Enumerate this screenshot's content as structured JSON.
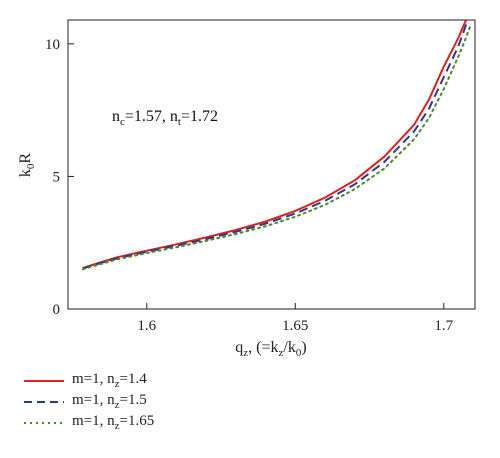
{
  "chart_data": {
    "type": "line",
    "xlabel": {
      "main": "q",
      "sub": "z",
      "rest": ", (=k",
      "sub2": "z",
      "rest2": "/k",
      "sub3": "0",
      "close": ")"
    },
    "ylabel": {
      "main": "k",
      "sub": "0",
      "rest": "R"
    },
    "xlim": [
      1.5735,
      1.7105
    ],
    "ylim": [
      0,
      10.9
    ],
    "xticks": [
      1.6,
      1.65,
      1.7
    ],
    "xtick_labels": [
      "1.6",
      "1.65",
      "1.7"
    ],
    "yticks": [
      0,
      5,
      10
    ],
    "ytick_labels": [
      "0",
      "5",
      "10"
    ],
    "annotation": {
      "a": "n",
      "a_sub": "c",
      "b": "=1.57, n",
      "b_sub": "t",
      "c": "=1.72"
    },
    "legend_position": "bottom-left-outside",
    "series": [
      {
        "name": "m=1, n_z=1.4",
        "label_pre": "m=1, n",
        "label_sub": "z",
        "label_post": "=1.4",
        "color": "#e0201c",
        "dash": "solid",
        "x": [
          1.5785,
          1.585,
          1.59,
          1.6,
          1.61,
          1.62,
          1.63,
          1.64,
          1.65,
          1.66,
          1.67,
          1.68,
          1.69,
          1.695,
          1.7,
          1.703,
          1.705,
          1.7065,
          1.7075
        ],
        "y": [
          1.55,
          1.78,
          1.95,
          2.2,
          2.44,
          2.7,
          2.98,
          3.3,
          3.7,
          4.2,
          4.85,
          5.75,
          6.95,
          7.9,
          9.15,
          9.8,
          10.25,
          10.65,
          10.9
        ]
      },
      {
        "name": "m=1, n_z=1.5",
        "label_pre": "m=1, n",
        "label_sub": "z",
        "label_post": "=1.5",
        "color": "#2b3a8f",
        "dash": "dashed",
        "x": [
          1.5785,
          1.585,
          1.59,
          1.6,
          1.61,
          1.62,
          1.63,
          1.64,
          1.65,
          1.66,
          1.67,
          1.68,
          1.69,
          1.695,
          1.7,
          1.703,
          1.705,
          1.7065,
          1.708
        ],
        "y": [
          1.53,
          1.75,
          1.91,
          2.16,
          2.39,
          2.64,
          2.91,
          3.22,
          3.6,
          4.08,
          4.7,
          5.55,
          6.7,
          7.55,
          8.75,
          9.45,
          9.95,
          10.4,
          10.9
        ]
      },
      {
        "name": "m=1, n_z=1.65",
        "label_pre": "m=1, n",
        "label_sub": "z",
        "label_post": "=1.65",
        "color": "#4a8a2a",
        "dash": "dotted",
        "x": [
          1.5785,
          1.585,
          1.59,
          1.6,
          1.61,
          1.62,
          1.63,
          1.64,
          1.65,
          1.66,
          1.67,
          1.68,
          1.69,
          1.695,
          1.7,
          1.703,
          1.705,
          1.707,
          1.709
        ],
        "y": [
          1.5,
          1.71,
          1.87,
          2.11,
          2.33,
          2.57,
          2.83,
          3.12,
          3.48,
          3.93,
          4.52,
          5.3,
          6.4,
          7.2,
          8.3,
          9.05,
          9.55,
          10.1,
          10.7
        ]
      }
    ]
  }
}
